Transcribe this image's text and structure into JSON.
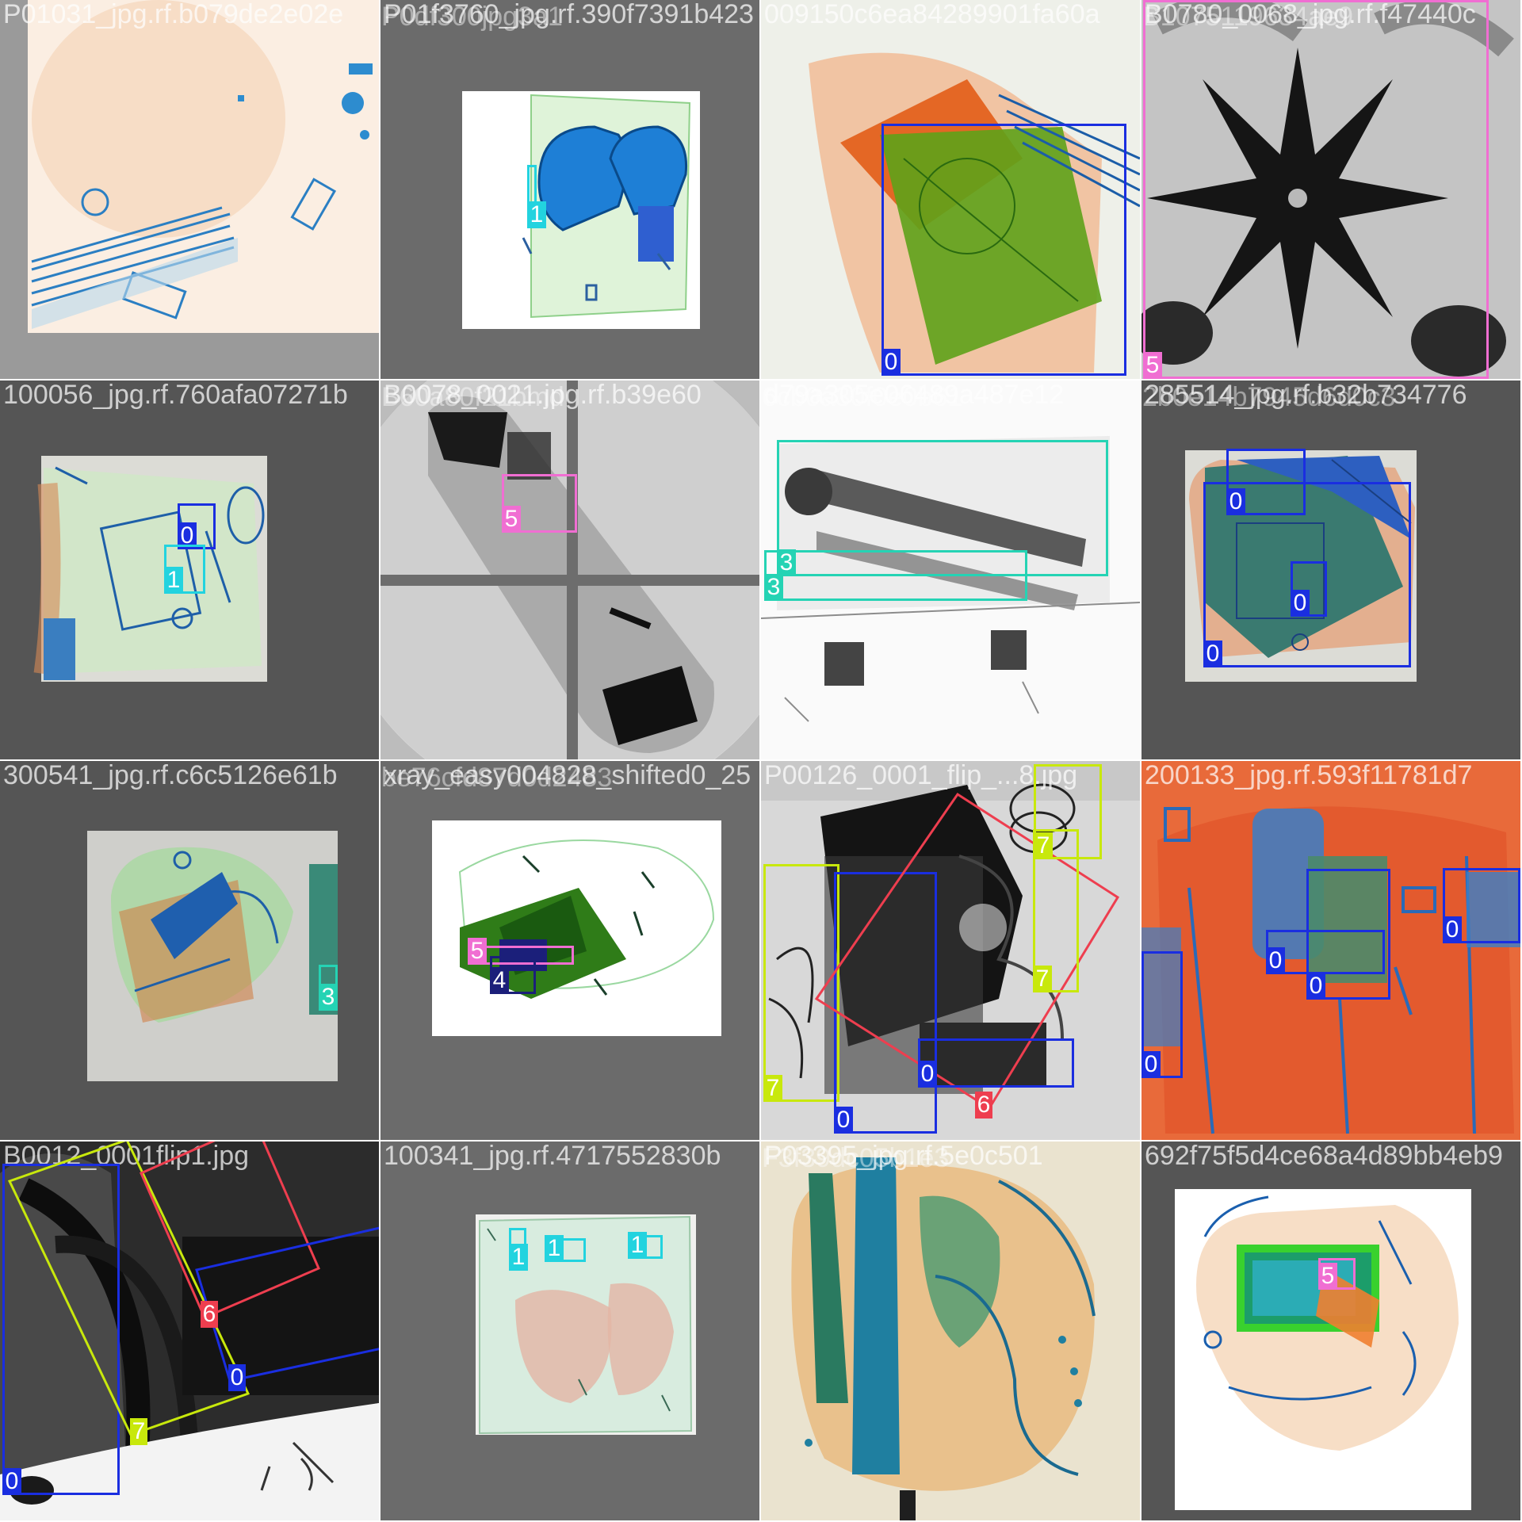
{
  "mosaic": {
    "class_colors": {
      "0": "#1a2ee0",
      "1": "#22d3df",
      "3": "#25d3b4",
      "4": "#1b1f7a",
      "5": "#f06ed2",
      "6": "#ee3e4f",
      "7": "#c8e80c"
    },
    "tiles": [
      {
        "filename": "P01031_jpg.rf.b079de2e02e",
        "overlay_text": "",
        "boxes": []
      },
      {
        "filename": "P01f3760_jpg.rf.390f7391b423",
        "overlay_text": "P0df300jpg3a1",
        "boxes": [
          {
            "label": "1"
          }
        ]
      },
      {
        "filename": "009150c6ea84289901fa60a",
        "overlay_text": "",
        "boxes": [
          {
            "label": "0"
          }
        ]
      },
      {
        "filename": "B0780_0068_jpg.rf.f47440c",
        "overlay_text": "B1075119634ae9",
        "boxes": [
          {
            "label": "5"
          }
        ]
      },
      {
        "filename": "100056_jpg.rf.760afa07271b",
        "overlay_text": "",
        "boxes": [
          {
            "label": "0"
          },
          {
            "label": "1"
          }
        ]
      },
      {
        "filename": "B0078_0021.jpg.rf.b39e60",
        "overlay_text": "B60a80f21bmd",
        "boxes": [
          {
            "label": "5"
          }
        ]
      },
      {
        "filename": "d79a305e06489a487e12",
        "overlay_text": "6cb0a30f0e0b61",
        "boxes": [
          {
            "label": "3"
          },
          {
            "label": "3"
          }
        ]
      },
      {
        "filename": "285514_jpg.rf.b32b734776",
        "overlay_text": "2b0e14b7945d6d0c3",
        "boxes": [
          {
            "label": "0"
          },
          {
            "label": "0"
          },
          {
            "label": "0"
          }
        ]
      },
      {
        "filename": "300541_jpg.rf.c6c5126e61b",
        "overlay_text": "",
        "boxes": [
          {
            "label": "3"
          }
        ]
      },
      {
        "filename": "xray_easy004828_shifted0_25",
        "overlay_text": "be76cfd87d0d2483",
        "boxes": [
          {
            "label": "5"
          },
          {
            "label": "4"
          }
        ]
      },
      {
        "filename": "P00126_0001_flip_...8.jpg",
        "overlay_text": "",
        "boxes": [
          {
            "label": "7"
          },
          {
            "label": "0"
          },
          {
            "label": "6"
          },
          {
            "label": "0"
          },
          {
            "label": "7"
          },
          {
            "label": "7"
          }
        ]
      },
      {
        "filename": "200133_jpg.rf.593f11781d7",
        "overlay_text": "",
        "boxes": [
          {
            "label": "0"
          },
          {
            "label": "0"
          },
          {
            "label": "0"
          },
          {
            "label": "0"
          }
        ]
      },
      {
        "filename": "B0012_0001flip1.jpg",
        "overlay_text": "",
        "boxes": [
          {
            "label": "0"
          },
          {
            "label": "7"
          },
          {
            "label": "6"
          },
          {
            "label": "0"
          }
        ]
      },
      {
        "filename": "100341_jpg.rf.4717552830b",
        "overlay_text": "",
        "boxes": [
          {
            "label": "1"
          },
          {
            "label": "1"
          },
          {
            "label": "1"
          }
        ]
      },
      {
        "filename": "P03395_jpg.rf.5e0c501",
        "overlay_text": "F3f39dc05b1e3",
        "boxes": []
      },
      {
        "filename": "692f75f5d4ce68a4d89bb4eb9",
        "overlay_text": "",
        "boxes": [
          {
            "label": "5"
          }
        ]
      }
    ]
  }
}
